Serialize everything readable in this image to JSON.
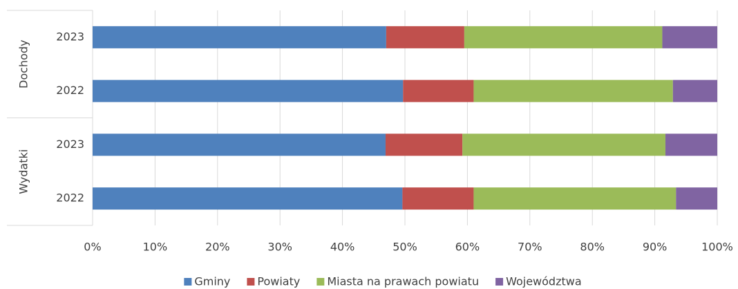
{
  "chart_data": {
    "type": "stacked_bar_horizontal_100",
    "groups": [
      {
        "name": "Dochody",
        "categories": [
          "2023",
          "2022"
        ]
      },
      {
        "name": "Wydatki",
        "categories": [
          "2023",
          "2022"
        ]
      }
    ],
    "series": [
      {
        "name": "Gminy",
        "color": "#4f81bd",
        "values": [
          47.0,
          49.7,
          46.9,
          49.6
        ]
      },
      {
        "name": "Powiaty",
        "color": "#c0504d",
        "values": [
          12.5,
          11.3,
          12.3,
          11.4
        ]
      },
      {
        "name": "Miasta na prawach powiatu",
        "color": "#9bbb59",
        "values": [
          31.7,
          31.9,
          32.5,
          32.4
        ]
      },
      {
        "name": "Województwa",
        "color": "#8064a2",
        "values": [
          8.8,
          7.1,
          8.3,
          6.6
        ]
      }
    ],
    "xlim": [
      0,
      100
    ],
    "xticks": [
      {
        "value": 0,
        "label": "0%"
      },
      {
        "value": 10,
        "label": "10%"
      },
      {
        "value": 20,
        "label": "20%"
      },
      {
        "value": 30,
        "label": "30%"
      },
      {
        "value": 40,
        "label": "40%"
      },
      {
        "value": 50,
        "label": "50%"
      },
      {
        "value": 60,
        "label": "60%"
      },
      {
        "value": 70,
        "label": "70%"
      },
      {
        "value": 80,
        "label": "80%"
      },
      {
        "value": 90,
        "label": "90%"
      },
      {
        "value": 100,
        "label": "100%"
      }
    ],
    "grid": true,
    "legend": "bottom"
  }
}
